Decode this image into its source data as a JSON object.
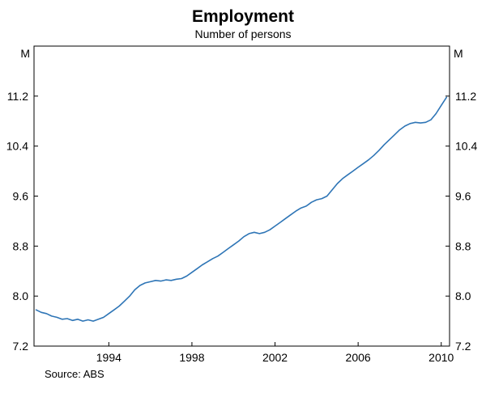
{
  "chart_data": {
    "type": "line",
    "title": "Employment",
    "subtitle": "Number of persons",
    "unit": "M",
    "source": "Source: ABS",
    "xlim": [
      1990.4,
      2010.4
    ],
    "ylim": [
      7.2,
      12.0
    ],
    "xticks": [
      1994,
      1998,
      2002,
      2006,
      2010
    ],
    "yticks": [
      7.2,
      8.0,
      8.8,
      9.6,
      10.4,
      11.2
    ],
    "line_color": "#2e75b6",
    "legend": "none",
    "grid": false,
    "series": [
      {
        "name": "Employment (millions of persons)",
        "x_start": 1990.5,
        "x_step": 0.25,
        "values": [
          7.78,
          7.74,
          7.72,
          7.68,
          7.66,
          7.63,
          7.64,
          7.61,
          7.63,
          7.6,
          7.62,
          7.6,
          7.63,
          7.66,
          7.72,
          7.78,
          7.84,
          7.92,
          8.0,
          8.1,
          8.17,
          8.21,
          8.23,
          8.25,
          8.24,
          8.26,
          8.25,
          8.27,
          8.28,
          8.32,
          8.38,
          8.44,
          8.5,
          8.55,
          8.6,
          8.64,
          8.7,
          8.76,
          8.82,
          8.88,
          8.95,
          9.0,
          9.02,
          9.0,
          9.02,
          9.06,
          9.12,
          9.18,
          9.24,
          9.3,
          9.36,
          9.41,
          9.44,
          9.5,
          9.54,
          9.56,
          9.6,
          9.7,
          9.8,
          9.88,
          9.94,
          10.0,
          10.06,
          10.12,
          10.18,
          10.25,
          10.33,
          10.42,
          10.5,
          10.58,
          10.66,
          10.72,
          10.76,
          10.78,
          10.77,
          10.78,
          10.82,
          10.92,
          11.05,
          11.18
        ]
      }
    ]
  }
}
